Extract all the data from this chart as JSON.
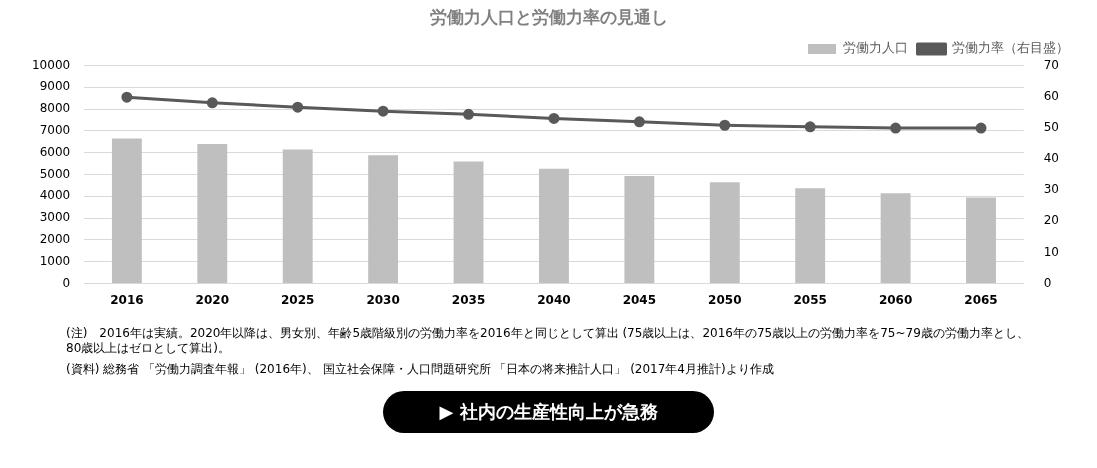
{
  "chart_data": {
    "type": "bar",
    "title": "労働力人口と労働力率の見通し",
    "categories": [
      "2016",
      "2020",
      "2025",
      "2030",
      "2035",
      "2040",
      "2045",
      "2050",
      "2055",
      "2060",
      "2065"
    ],
    "series": [
      {
        "name": "労働力人口",
        "color": "#bfbfbf",
        "values": [
          6650,
          6400,
          6150,
          5880,
          5600,
          5260,
          4930,
          4640,
          4370,
          4140,
          3950
        ]
      },
      {
        "name": "労働力率（右目盛）",
        "type": "line",
        "axis": "y2",
        "color": "#595959",
        "marker": "circle",
        "values": [
          59.8,
          58.0,
          56.6,
          55.3,
          54.3,
          53.0,
          51.9,
          50.8,
          50.3,
          49.9,
          49.9
        ]
      }
    ],
    "ylim": [
      0,
      10000
    ],
    "yticks": [
      0,
      1000,
      2000,
      3000,
      4000,
      5000,
      6000,
      7000,
      8000,
      9000,
      10000
    ],
    "y2lim": [
      0,
      70
    ],
    "y2ticks": [
      0,
      10,
      20,
      30,
      40,
      50,
      60,
      70
    ],
    "grid": "y",
    "legend": "top right",
    "annotations": [
      "(注)　2016年は実績。2020年以降は、男女別、年齢5歳階級別の労働力率を2016年と同じとして算出 (75歳以上は、2016年の75歳以上の労働力率を75~79歳の労働力率とし、80歳以上はゼロとして算出)。",
      "(資料) 総務省 「労働力調査年報」 (2016年)、 国立社会保障・人口問題研究所 「日本の将来推計人口」 (2017年4月推計)より作成",
      "▶ 社内の生産性向上が急務"
    ]
  }
}
